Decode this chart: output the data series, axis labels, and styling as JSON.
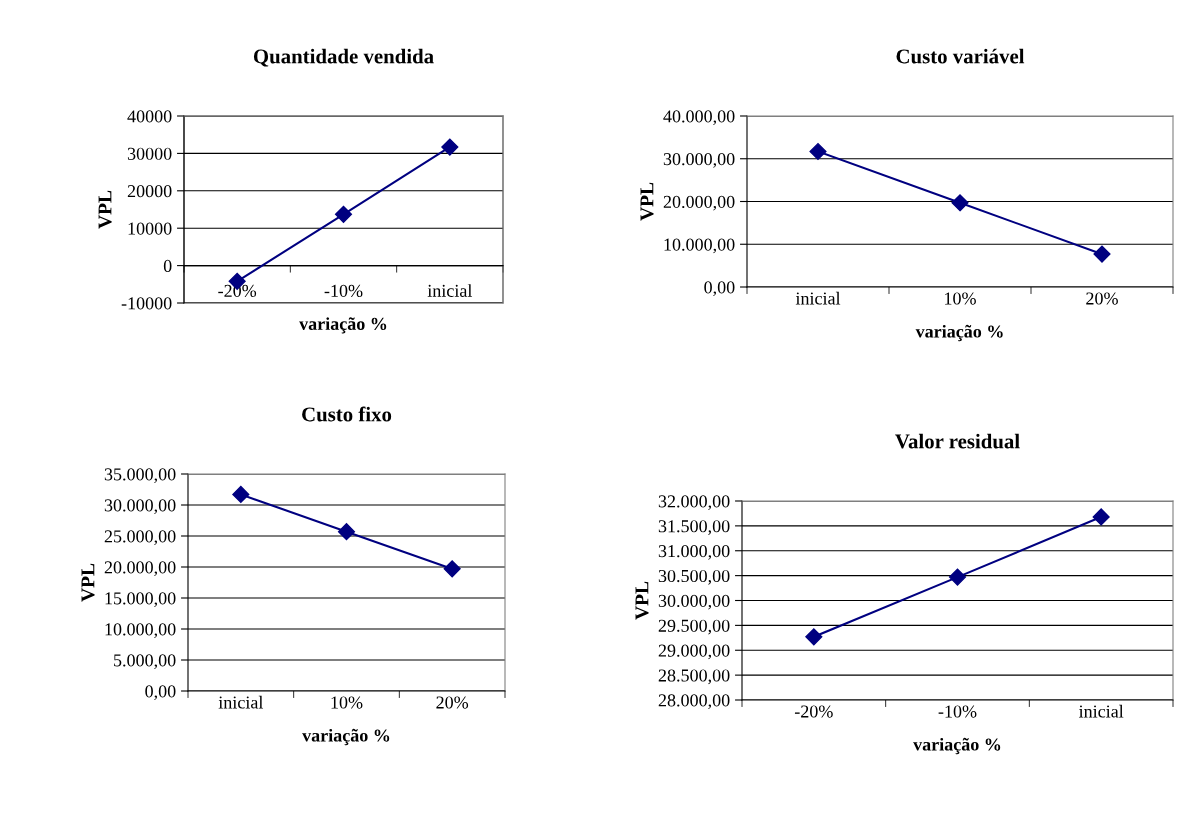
{
  "chart_data": [
    {
      "type": "line",
      "title": "Quantidade vendida",
      "xlabel": "variação %",
      "ylabel": "VPL",
      "categories": [
        "-20%",
        "-10%",
        "inicial"
      ],
      "series": [
        {
          "color": "#000080",
          "values": [
            -4200,
            13700,
            31700
          ]
        }
      ],
      "ylim": [
        -10000,
        40000
      ],
      "yticks": [
        -10000,
        0,
        10000,
        20000,
        30000,
        40000
      ],
      "grid": "y",
      "marker": "diamond",
      "line_style": "solid"
    },
    {
      "type": "line",
      "title": "Custo variável",
      "xlabel": "variação %",
      "ylabel": "VPL",
      "categories": [
        "inicial",
        "10%",
        "20%"
      ],
      "series": [
        {
          "color": "#000080",
          "values": [
            31700,
            19700,
            7700
          ]
        }
      ],
      "ylim": [
        0,
        40000
      ],
      "yticks": [
        {
          "value": 0,
          "label": "0,00"
        },
        {
          "value": 10000,
          "label": "10.000,00"
        },
        {
          "value": 20000,
          "label": "20.000,00"
        },
        {
          "value": 30000,
          "label": "30.000,00"
        },
        {
          "value": 40000,
          "label": "40.000,00"
        }
      ],
      "grid": "y",
      "marker": "diamond",
      "line_style": "solid"
    },
    {
      "type": "line",
      "title": "Custo fixo",
      "xlabel": "variação %",
      "ylabel": "VPL",
      "categories": [
        "inicial",
        "10%",
        "20%"
      ],
      "series": [
        {
          "color": "#000080",
          "values": [
            31700,
            25700,
            19700
          ]
        }
      ],
      "ylim": [
        0,
        35000
      ],
      "yticks": [
        {
          "value": 0,
          "label": "0,00"
        },
        {
          "value": 5000,
          "label": "5.000,00"
        },
        {
          "value": 10000,
          "label": "10.000,00"
        },
        {
          "value": 15000,
          "label": "15.000,00"
        },
        {
          "value": 20000,
          "label": "20.000,00"
        },
        {
          "value": 25000,
          "label": "25.000,00"
        },
        {
          "value": 30000,
          "label": "30.000,00"
        },
        {
          "value": 35000,
          "label": "35.000,00"
        }
      ],
      "grid": "y",
      "marker": "diamond",
      "line_style": "solid"
    },
    {
      "type": "line",
      "title": "Valor residual",
      "xlabel": "variação %",
      "ylabel": "VPL",
      "categories": [
        "-20%",
        "-10%",
        "inicial"
      ],
      "series": [
        {
          "color": "#000080",
          "values": [
            29270,
            30470,
            31680
          ]
        }
      ],
      "ylim": [
        28000,
        32000
      ],
      "yticks": [
        {
          "value": 28000,
          "label": "28.000,00"
        },
        {
          "value": 28500,
          "label": "28.500,00"
        },
        {
          "value": 29000,
          "label": "29.000,00"
        },
        {
          "value": 29500,
          "label": "29.500,00"
        },
        {
          "value": 30000,
          "label": "30.000,00"
        },
        {
          "value": 30500,
          "label": "30.500,00"
        },
        {
          "value": 31000,
          "label": "31.000,00"
        },
        {
          "value": 31500,
          "label": "31.500,00"
        },
        {
          "value": 32000,
          "label": "32.000,00"
        }
      ],
      "grid": "y",
      "marker": "diamond",
      "line_style": "solid"
    }
  ]
}
